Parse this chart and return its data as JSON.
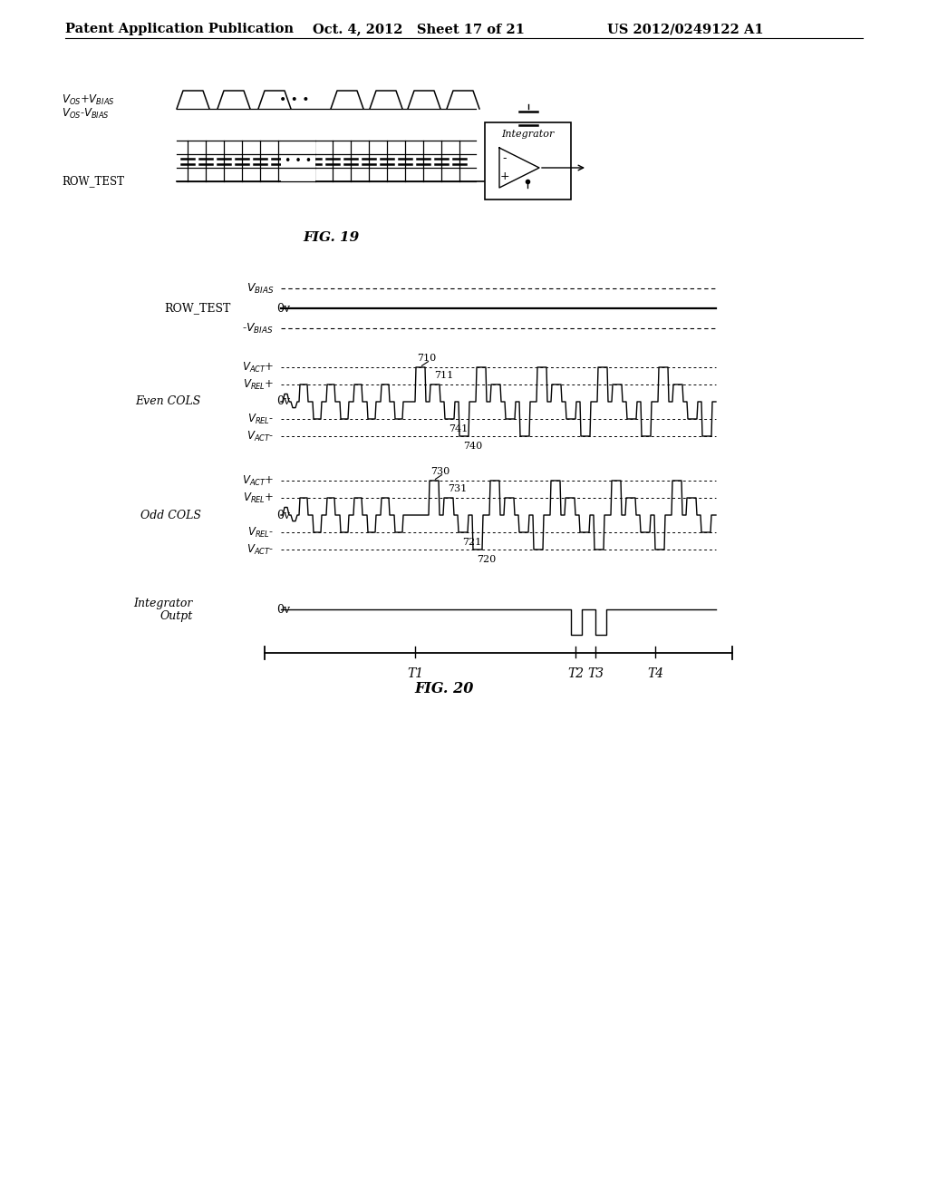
{
  "header_left": "Patent Application Publication",
  "header_mid": "Oct. 4, 2012   Sheet 17 of 21",
  "header_right": "US 2012/0249122 A1",
  "fig19_label": "FIG. 19",
  "fig20_label": "FIG. 20",
  "bg_color": "#ffffff",
  "line_color": "#000000"
}
